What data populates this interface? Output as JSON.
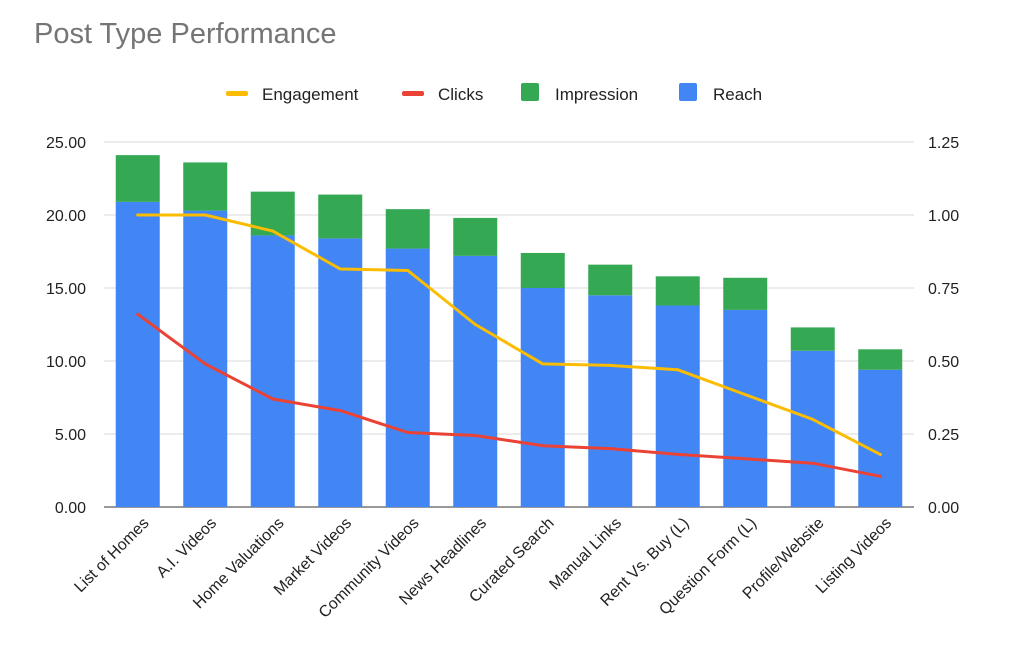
{
  "chart_data": {
    "type": "bar",
    "title": "Post Type Performance",
    "xlabel": "",
    "ylabel": "",
    "categories": [
      "List of Homes",
      "A.I. Videos",
      "Home Valuations",
      "Market Videos",
      "Community Videos",
      "News Headlines",
      "Curated Search",
      "Manual Links",
      "Rent Vs. Buy (L)",
      "Question Form (L)",
      "Profile/Website",
      "Listing Videos"
    ],
    "ylim": [
      0,
      25
    ],
    "y2lim": [
      0,
      1.25
    ],
    "yticks": [
      "0.00",
      "5.00",
      "10.00",
      "15.00",
      "20.00",
      "25.00"
    ],
    "y2ticks": [
      "0.00",
      "0.25",
      "0.50",
      "0.75",
      "1.00",
      "1.25"
    ],
    "legend_position": "top",
    "grid": "horizontal",
    "stacked": true,
    "series": [
      {
        "name": "Reach",
        "kind": "bar",
        "axis": "left",
        "color": "#4285F4",
        "values": [
          20.9,
          20.3,
          18.6,
          18.4,
          17.7,
          17.2,
          15.0,
          14.5,
          13.8,
          13.5,
          10.7,
          9.4
        ]
      },
      {
        "name": "Impression",
        "kind": "bar",
        "axis": "left",
        "color": "#34A853",
        "values": [
          3.2,
          3.3,
          3.0,
          3.0,
          2.7,
          2.6,
          2.4,
          2.1,
          2.0,
          2.2,
          1.6,
          1.4
        ]
      },
      {
        "name": "Clicks",
        "kind": "line",
        "axis": "right",
        "color": "#EA4335",
        "values": [
          0.66,
          0.49,
          0.37,
          0.33,
          0.255,
          0.245,
          0.21,
          0.2,
          0.18,
          0.165,
          0.15,
          0.105
        ]
      },
      {
        "name": "Engagement",
        "kind": "line",
        "axis": "right",
        "color": "#FBBC04",
        "values": [
          1.0,
          1.0,
          0.945,
          0.815,
          0.81,
          0.625,
          0.49,
          0.485,
          0.47,
          0.385,
          0.3,
          0.18
        ]
      }
    ],
    "legend_order": [
      "Engagement",
      "Clicks",
      "Impression",
      "Reach"
    ]
  }
}
